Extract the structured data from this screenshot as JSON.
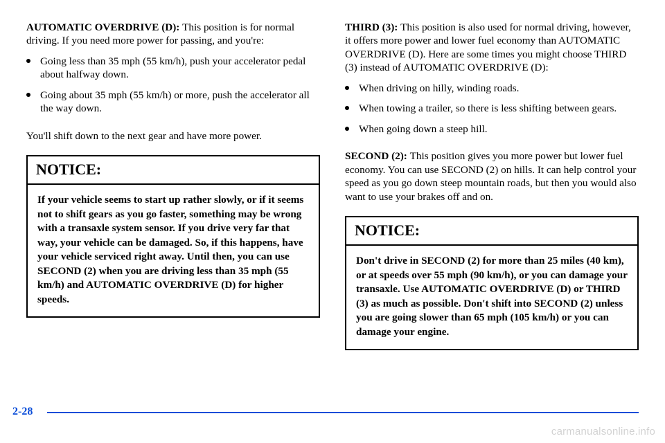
{
  "colors": {
    "accent": "#0a4dd8",
    "text": "#000000",
    "watermark": "rgba(0,0,0,0.18)",
    "border": "#000000",
    "footer_line": "#0a4dd8"
  },
  "left": {
    "p1_lead": "AUTOMATIC OVERDRIVE (D): ",
    "p1_rest": "This position is for normal driving. If you need more power for passing, and you're:",
    "bullets": [
      "Going less than 35 mph (55 km/h), push your accelerator pedal about halfway down.",
      "Going about 35 mph (55 km/h) or more, push the accelerator all the way down."
    ],
    "p2": "You'll shift down to the next gear and have more power.",
    "notice_title": "NOTICE:",
    "notice_body": "If your vehicle seems to start up rather slowly, or if it seems not to shift gears as you go faster, something may be wrong with a transaxle system sensor. If you drive very far that way, your vehicle can be damaged. So, if this happens, have your vehicle serviced right away. Until then, you can use SECOND (2) when you are driving less than 35 mph (55 km/h) and AUTOMATIC OVERDRIVE (D) for higher speeds."
  },
  "right": {
    "p1_lead": "THIRD (3): ",
    "p1_rest": "This position is also used for normal driving, however, it offers more power and lower fuel economy than AUTOMATIC OVERDRIVE (D). Here are some times you might choose THIRD (3) instead of AUTOMATIC OVERDRIVE (D):",
    "bullets": [
      "When driving on hilly, winding roads.",
      "When towing a trailer, so there is less shifting between gears.",
      "When going down a steep hill."
    ],
    "p2_lead": "SECOND (2): ",
    "p2_rest": "This position gives you more power but lower fuel economy. You can use SECOND (2) on hills. It can help control your speed as you go down steep mountain roads, but then you would also want to use your brakes off and on.",
    "notice_title": "NOTICE:",
    "notice_body": "Don't drive in SECOND (2) for more than 25 miles (40 km), or at speeds over 55 mph (90 km/h), or you can damage your transaxle. Use AUTOMATIC OVERDRIVE (D) or THIRD (3) as much as possible. Don't shift into SECOND (2) unless you are going slower than 65 mph (105 km/h) or you can damage your engine."
  },
  "footer": {
    "page_number": "2-28",
    "watermark": "carmanualsonline.info"
  }
}
